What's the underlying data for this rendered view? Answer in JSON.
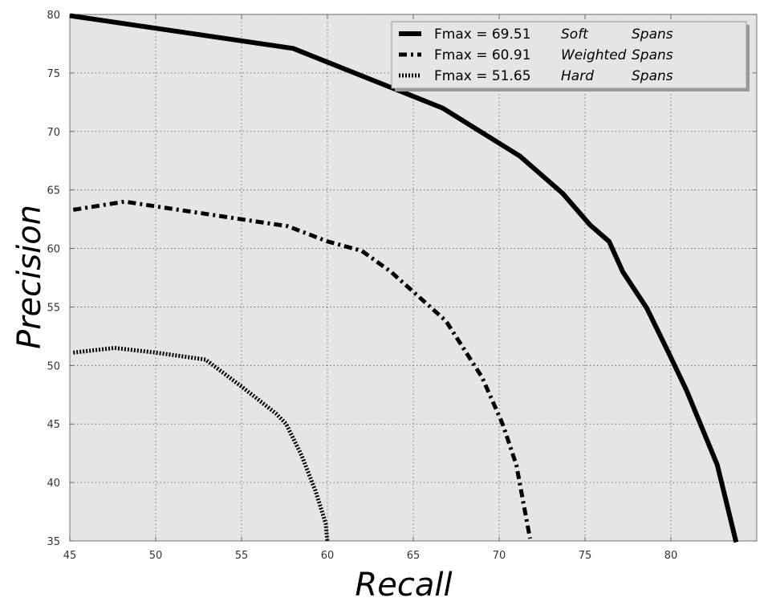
{
  "chart_data": {
    "type": "line",
    "xlabel": "Recall",
    "ylabel": "Precision",
    "xlim": [
      45,
      85
    ],
    "ylim": [
      35,
      80
    ],
    "xticks": [
      45,
      50,
      55,
      60,
      65,
      70,
      75,
      80
    ],
    "yticks": [
      35,
      40,
      45,
      50,
      55,
      60,
      65,
      70,
      75,
      80
    ],
    "grid": true,
    "legend_position": "top-right",
    "series": [
      {
        "name": "Fmax = 69.51",
        "method": "Soft",
        "kind": "Spans",
        "style": "solid",
        "x": [
          45.0,
          58.0,
          66.7,
          71.2,
          73.7,
          75.3,
          76.4,
          77.2,
          78.6,
          79.8,
          80.9,
          82.7,
          83.8
        ],
        "y": [
          79.9,
          77.1,
          72.0,
          67.9,
          64.7,
          62.0,
          60.6,
          58.0,
          54.9,
          51.3,
          47.9,
          41.5,
          34.9
        ]
      },
      {
        "name": "Fmax = 60.91",
        "method": "Weighted",
        "kind": "Spans",
        "style": "dashdot",
        "x": [
          45.2,
          48.2,
          50.0,
          57.7,
          60.0,
          62.0,
          63.7,
          65.0,
          66.9,
          69.0,
          70.2,
          71.0,
          71.8
        ],
        "y": [
          63.3,
          64.0,
          63.6,
          61.9,
          60.6,
          59.8,
          58.0,
          56.3,
          53.8,
          49.0,
          45.0,
          41.5,
          35.2
        ]
      },
      {
        "name": "Fmax = 51.65",
        "method": "Hard",
        "kind": "Spans",
        "style": "dotted",
        "x": [
          45.2,
          47.6,
          50.0,
          52.9,
          55.0,
          57.0,
          57.6,
          58.5,
          59.3,
          59.9,
          60.0
        ],
        "y": [
          51.1,
          51.5,
          51.1,
          50.5,
          48.2,
          45.9,
          45.0,
          42.3,
          39.3,
          36.5,
          34.9
        ]
      }
    ]
  }
}
